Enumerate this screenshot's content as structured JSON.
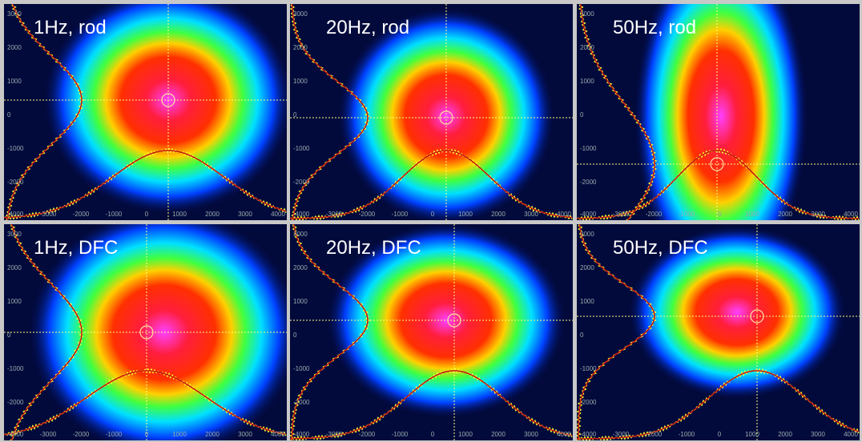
{
  "panels": [
    {
      "label": "1Hz, rod"
    },
    {
      "label": "20Hz, rod"
    },
    {
      "label": "50Hz, rod"
    },
    {
      "label": "1Hz, DFC"
    },
    {
      "label": "20Hz, DFC"
    },
    {
      "label": "50Hz, DFC"
    }
  ],
  "x_ticks": [
    "-4000",
    "-3000",
    "-2000",
    "-1000",
    "0",
    "1000",
    "2000",
    "3000",
    "4000"
  ],
  "y_ticks": [
    "3000",
    "2000",
    "1000",
    "0",
    "-1000",
    "-2000"
  ]
}
